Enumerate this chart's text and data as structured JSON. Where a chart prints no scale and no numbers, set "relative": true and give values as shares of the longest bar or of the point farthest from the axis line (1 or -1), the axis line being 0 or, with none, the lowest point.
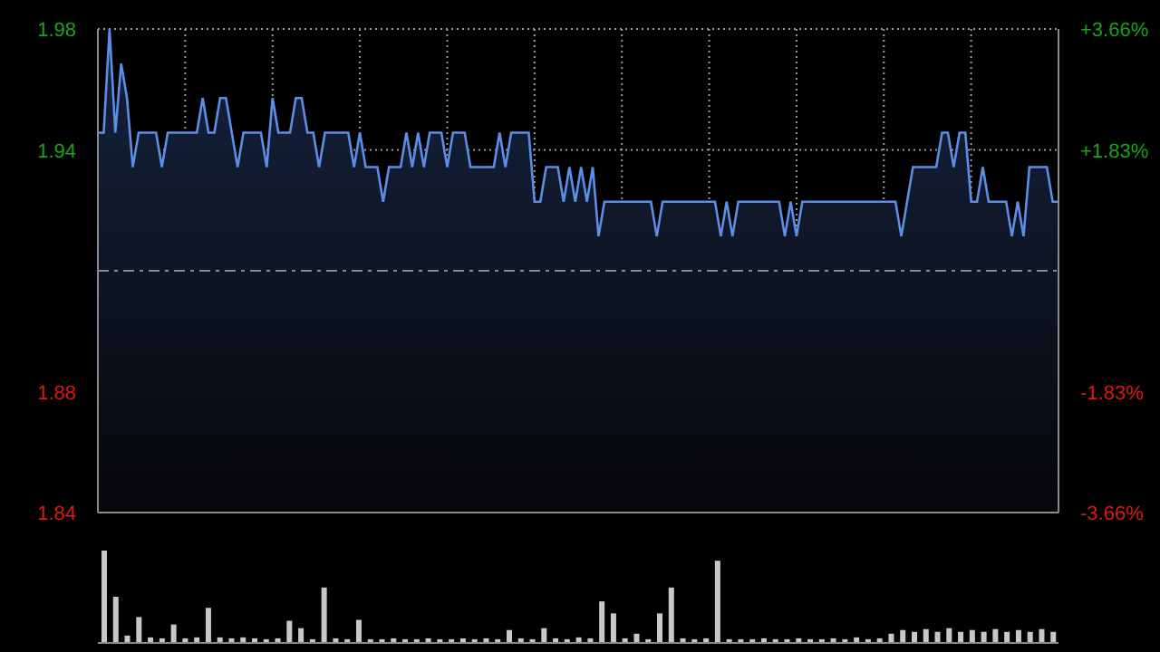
{
  "chart_data": [
    {
      "type": "area",
      "categories": [
        null,
        null,
        null,
        null,
        null,
        null,
        null,
        null,
        null,
        null,
        null,
        null,
        null,
        null,
        null,
        null,
        null,
        null,
        null,
        null,
        null,
        null,
        null,
        null,
        null,
        null,
        null,
        null,
        null,
        null,
        null,
        null,
        null,
        null,
        null,
        null,
        null,
        null,
        null,
        null,
        null,
        null,
        null,
        null,
        null,
        null,
        null,
        null,
        null,
        null,
        null,
        null,
        null,
        null,
        null,
        null,
        null,
        null,
        null,
        null,
        null,
        null,
        null,
        null,
        null,
        null,
        null,
        null,
        null,
        null,
        null,
        null,
        null,
        null,
        null,
        null,
        null,
        null,
        null,
        null,
        null,
        null,
        null,
        null,
        null,
        null,
        null,
        null,
        null,
        null,
        null,
        null,
        null,
        null,
        null,
        null,
        null,
        null,
        null,
        null,
        null,
        null,
        null,
        null,
        null,
        null,
        null,
        null,
        null,
        null,
        null,
        null,
        null,
        null,
        null,
        null,
        null,
        null,
        null,
        null,
        null,
        null,
        null,
        null,
        null,
        null,
        null,
        null,
        null,
        null,
        null,
        null,
        null,
        null,
        null,
        null,
        null,
        null,
        null,
        null,
        null,
        null,
        null,
        null,
        null,
        null,
        null,
        null,
        null,
        null,
        null,
        null,
        null,
        null,
        null,
        null,
        null,
        null,
        null,
        null,
        null,
        null,
        null,
        null,
        null,
        null
      ],
      "ylim": [
        1.84,
        1.98
      ],
      "yticks": [
        1.98,
        {
          "value": 1.945,
          "label": "1.94"
        },
        {
          "value": 1.875,
          "label": "1.88"
        },
        1.84
      ],
      "y2lim": [
        -3.66,
        3.66
      ],
      "y2ticks": [
        {
          "value": 3.66,
          "label": "+3.66%"
        },
        {
          "value": 1.83,
          "label": "+1.83%"
        },
        {
          "value": -1.83,
          "label": "-1.83%"
        },
        {
          "value": -3.66,
          "label": "-3.66%"
        }
      ],
      "tick_labels": "y",
      "grid": true,
      "legend": false,
      "ref_lines": [
        {
          "axis": "y",
          "value": 1.91,
          "color": "#8a8a8a",
          "line_style": "dashed"
        }
      ],
      "series": [
        {
          "color": "#5b8ee6",
          "values": [
            1.95,
            1.95,
            1.98,
            1.95,
            1.97,
            1.96,
            1.94,
            1.95,
            1.95,
            1.95,
            1.95,
            1.94,
            1.95,
            1.95,
            1.95,
            1.95,
            1.95,
            1.95,
            1.96,
            1.95,
            1.95,
            1.96,
            1.96,
            1.95,
            1.94,
            1.95,
            1.95,
            1.95,
            1.95,
            1.94,
            1.96,
            1.95,
            1.95,
            1.95,
            1.96,
            1.96,
            1.95,
            1.95,
            1.94,
            1.95,
            1.95,
            1.95,
            1.95,
            1.95,
            1.94,
            1.95,
            1.94,
            1.94,
            1.94,
            1.93,
            1.94,
            1.94,
            1.94,
            1.95,
            1.94,
            1.95,
            1.94,
            1.95,
            1.95,
            1.95,
            1.94,
            1.95,
            1.95,
            1.95,
            1.94,
            1.94,
            1.94,
            1.94,
            1.94,
            1.95,
            1.94,
            1.95,
            1.95,
            1.95,
            1.95,
            1.93,
            1.93,
            1.94,
            1.94,
            1.94,
            1.93,
            1.94,
            1.93,
            1.94,
            1.93,
            1.94,
            1.92,
            1.93,
            1.93,
            1.93,
            1.93,
            1.93,
            1.93,
            1.93,
            1.93,
            1.93,
            1.92,
            1.93,
            1.93,
            1.93,
            1.93,
            1.93,
            1.93,
            1.93,
            1.93,
            1.93,
            1.93,
            1.92,
            1.93,
            1.92,
            1.93,
            1.93,
            1.93,
            1.93,
            1.93,
            1.93,
            1.93,
            1.93,
            1.92,
            1.93,
            1.92,
            1.93,
            1.93,
            1.93,
            1.93,
            1.93,
            1.93,
            1.93,
            1.93,
            1.93,
            1.93,
            1.93,
            1.93,
            1.93,
            1.93,
            1.93,
            1.93,
            1.93,
            1.92,
            1.93,
            1.94,
            1.94,
            1.94,
            1.94,
            1.94,
            1.95,
            1.95,
            1.94,
            1.95,
            1.95,
            1.93,
            1.93,
            1.94,
            1.93,
            1.93,
            1.93,
            1.93,
            1.92,
            1.93,
            1.92,
            1.94,
            1.94,
            1.94,
            1.94,
            1.93,
            1.93
          ]
        }
      ]
    },
    {
      "type": "bar",
      "relative": true,
      "tick_labels": false,
      "legend": false,
      "categories": [
        null,
        null,
        null,
        null,
        null,
        null,
        null,
        null,
        null,
        null,
        null,
        null,
        null,
        null,
        null,
        null,
        null,
        null,
        null,
        null,
        null,
        null,
        null,
        null,
        null,
        null,
        null,
        null,
        null,
        null,
        null,
        null,
        null,
        null,
        null,
        null,
        null,
        null,
        null,
        null,
        null,
        null,
        null,
        null,
        null,
        null,
        null,
        null,
        null,
        null,
        null,
        null,
        null,
        null,
        null,
        null,
        null,
        null,
        null,
        null,
        null,
        null,
        null,
        null,
        null,
        null,
        null,
        null,
        null,
        null,
        null,
        null,
        null,
        null,
        null,
        null,
        null,
        null,
        null,
        null,
        null,
        null,
        null
      ],
      "series": [
        {
          "color": "#c8c8c8",
          "values": [
            1.0,
            0.5,
            0.08,
            0.28,
            0.06,
            0.05,
            0.2,
            0.05,
            0.06,
            0.38,
            0.06,
            0.05,
            0.06,
            0.05,
            0.04,
            0.05,
            0.24,
            0.16,
            0.04,
            0.6,
            0.05,
            0.04,
            0.25,
            0.04,
            0.04,
            0.05,
            0.04,
            0.04,
            0.05,
            0.04,
            0.04,
            0.05,
            0.04,
            0.05,
            0.04,
            0.14,
            0.05,
            0.04,
            0.16,
            0.05,
            0.04,
            0.06,
            0.05,
            0.45,
            0.32,
            0.05,
            0.1,
            0.04,
            0.32,
            0.6,
            0.05,
            0.04,
            0.05,
            0.89,
            0.04,
            0.04,
            0.04,
            0.05,
            0.04,
            0.04,
            0.05,
            0.04,
            0.04,
            0.05,
            0.04,
            0.06,
            0.04,
            0.05,
            0.1,
            0.14,
            0.12,
            0.15,
            0.12,
            0.16,
            0.12,
            0.14,
            0.12,
            0.15,
            0.12,
            0.14,
            0.12,
            0.15,
            0.12
          ]
        }
      ]
    }
  ]
}
